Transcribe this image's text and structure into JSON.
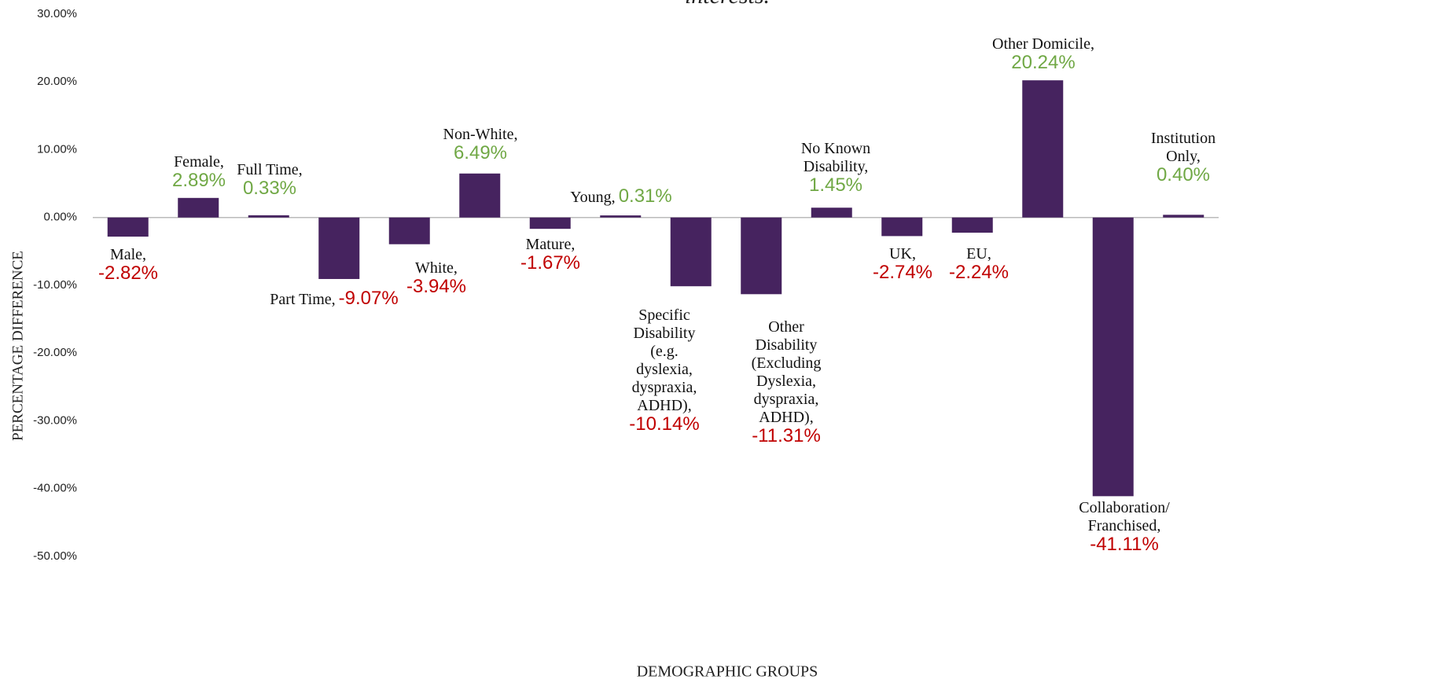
{
  "chart_data": {
    "type": "bar",
    "title": "interests.",
    "y_axis_label": "PERCENTAGE DIFFERENCE",
    "x_axis_label": "DEMOGRAPHIC GROUPS",
    "categories": [
      "Male,",
      "Female,",
      "Full Time,",
      "Part Time,",
      "White,",
      "Non-White,",
      "Mature,",
      "Young,",
      "Specific\nDisability\n(e.g.\ndyslexia,\ndyspraxia,\nADHD),",
      "Other\nDisability\n(Excluding\nDyslexia,\ndyspraxia,\nADHD),",
      "No Known\nDisability,",
      "UK,",
      "EU,",
      "Other Domicile,",
      "Collaboration/\nFranchised,",
      "Institution\nOnly,"
    ],
    "values": [
      -2.82,
      2.89,
      0.33,
      -9.07,
      -3.94,
      6.49,
      -1.67,
      0.31,
      -10.14,
      -11.31,
      1.45,
      -2.74,
      -2.24,
      20.24,
      -41.11,
      0.4
    ],
    "value_labels": [
      "-2.82%",
      "2.89%",
      "0.33%",
      "-9.07%",
      "-3.94%",
      "6.49%",
      "-1.67%",
      "0.31%",
      "-10.14%",
      "-11.31%",
      "1.45%",
      "-2.74%",
      "-2.24%",
      "20.24%",
      "-41.11%",
      "0.40%"
    ],
    "color": "#46235f",
    "positive_label_color": "#70a845",
    "negative_label_color": "#c00000",
    "ylim": [
      -50,
      30
    ],
    "yticks": [
      {
        "value": 30,
        "label": "30.00%"
      },
      {
        "value": 20,
        "label": "20.00%"
      },
      {
        "value": 10,
        "label": "10.00%"
      },
      {
        "value": 0,
        "label": "0.00%"
      },
      {
        "value": -10,
        "label": "-10.00%"
      },
      {
        "value": -20,
        "label": "-20.00%"
      },
      {
        "value": -30,
        "label": "-30.00%"
      },
      {
        "value": -40,
        "label": "-40.00%"
      },
      {
        "value": -50,
        "label": "-50.00%"
      }
    ]
  }
}
